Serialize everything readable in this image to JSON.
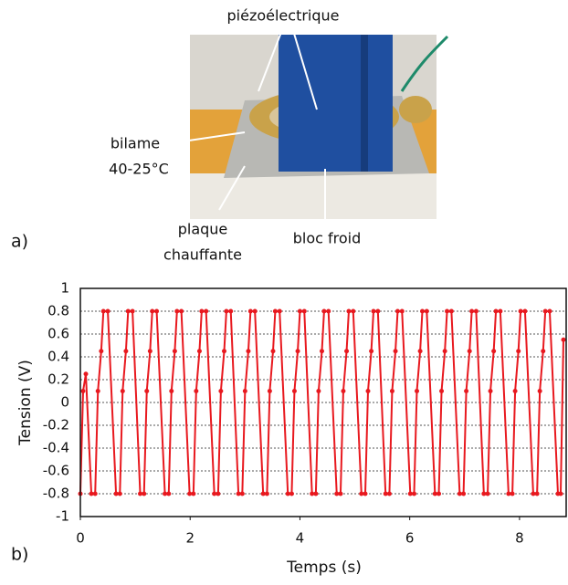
{
  "panel_labels": [
    "a)",
    "b)"
  ],
  "annotations": {
    "piezo": "piézoélectrique",
    "bilame": "bilame",
    "bilame_temp": "40-25°C",
    "plaque": "plaque",
    "chauffante": "chauffante",
    "bloc": "bloc froid"
  },
  "chart_data": {
    "type": "line",
    "x_label": "Temps (s)",
    "y_label": "Tension (V)",
    "color": "#e8191f",
    "markers": true,
    "grid": true,
    "xlim": [
      0,
      8.85
    ],
    "ylim": [
      -1,
      1
    ],
    "xticks": [
      0,
      2,
      4,
      6,
      8
    ],
    "yticks": [
      -1,
      -0.8,
      -0.6,
      -0.4,
      -0.2,
      0,
      0.2,
      0.4,
      0.6,
      0.8,
      1
    ],
    "x": [
      0,
      0.05,
      0.1,
      0.2,
      0.27,
      0.32,
      0.38,
      0.42,
      0.5,
      0.65,
      0.72,
      0.77,
      0.83,
      0.87,
      0.95,
      1.09,
      1.16,
      1.21,
      1.27,
      1.31,
      1.39,
      1.54,
      1.61,
      1.66,
      1.72,
      1.76,
      1.84,
      1.99,
      2.06,
      2.11,
      2.17,
      2.21,
      2.29,
      2.44,
      2.51,
      2.56,
      2.62,
      2.66,
      2.74,
      2.88,
      2.95,
      3.0,
      3.06,
      3.1,
      3.18,
      3.33,
      3.4,
      3.45,
      3.51,
      3.55,
      3.63,
      3.78,
      3.85,
      3.9,
      3.96,
      4.0,
      4.08,
      4.22,
      4.29,
      4.34,
      4.4,
      4.44,
      4.52,
      4.67,
      4.74,
      4.79,
      4.85,
      4.89,
      4.97,
      5.12,
      5.19,
      5.24,
      5.3,
      5.34,
      5.42,
      5.56,
      5.63,
      5.68,
      5.74,
      5.78,
      5.86,
      6.01,
      6.08,
      6.13,
      6.19,
      6.23,
      6.31,
      6.46,
      6.53,
      6.58,
      6.64,
      6.68,
      6.76,
      6.91,
      6.98,
      7.03,
      7.09,
      7.13,
      7.21,
      7.35,
      7.42,
      7.47,
      7.53,
      7.57,
      7.65,
      7.8,
      7.87,
      7.92,
      7.98,
      8.02,
      8.1,
      8.25,
      8.32,
      8.37,
      8.43,
      8.47,
      8.55,
      8.7,
      8.75,
      8.8
    ],
    "values": [
      -0.8,
      0.1,
      0.25,
      -0.8,
      -0.8,
      0.1,
      0.45,
      0.8,
      0.8,
      -0.8,
      -0.8,
      0.1,
      0.45,
      0.8,
      0.8,
      -0.8,
      -0.8,
      0.1,
      0.45,
      0.8,
      0.8,
      -0.8,
      -0.8,
      0.1,
      0.45,
      0.8,
      0.8,
      -0.8,
      -0.8,
      0.1,
      0.45,
      0.8,
      0.8,
      -0.8,
      -0.8,
      0.1,
      0.45,
      0.8,
      0.8,
      -0.8,
      -0.8,
      0.1,
      0.45,
      0.8,
      0.8,
      -0.8,
      -0.8,
      0.1,
      0.45,
      0.8,
      0.8,
      -0.8,
      -0.8,
      0.1,
      0.45,
      0.8,
      0.8,
      -0.8,
      -0.8,
      0.1,
      0.45,
      0.8,
      0.8,
      -0.8,
      -0.8,
      0.1,
      0.45,
      0.8,
      0.8,
      -0.8,
      -0.8,
      0.1,
      0.45,
      0.8,
      0.8,
      -0.8,
      -0.8,
      0.1,
      0.45,
      0.8,
      0.8,
      -0.8,
      -0.8,
      0.1,
      0.45,
      0.8,
      0.8,
      -0.8,
      -0.8,
      0.1,
      0.45,
      0.8,
      0.8,
      -0.8,
      -0.8,
      0.1,
      0.45,
      0.8,
      0.8,
      -0.8,
      -0.8,
      0.1,
      0.45,
      0.8,
      0.8,
      -0.8,
      -0.8,
      0.1,
      0.45,
      0.8,
      0.8,
      -0.8,
      -0.8,
      0.1,
      0.45,
      0.8,
      0.8,
      -0.8,
      -0.8,
      0.55
    ]
  }
}
